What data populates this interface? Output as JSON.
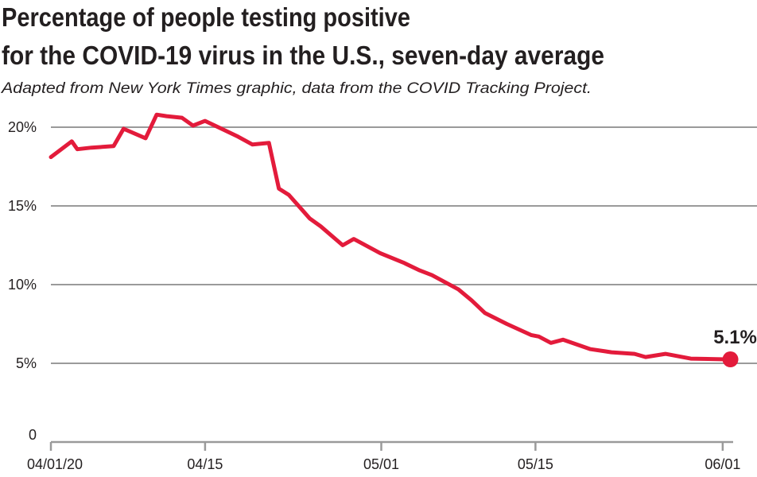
{
  "chart_data": {
    "type": "line",
    "title_lines": [
      "Percentage of people testing positive",
      "for the COVID-19 virus in the U.S., seven-day average"
    ],
    "subtitle": "Adapted from New York Times graphic, data from the COVID Tracking Project.",
    "xlabel": "",
    "ylabel": "",
    "x_unit": "days since 04/01/20",
    "xlim": [
      0,
      62
    ],
    "ylim": [
      0,
      20.8
    ],
    "grid": true,
    "x_ticks": [
      {
        "day": 0,
        "label": "04/01/20"
      },
      {
        "day": 14,
        "label": "04/15"
      },
      {
        "day": 30,
        "label": "05/01"
      },
      {
        "day": 44,
        "label": "05/15"
      },
      {
        "day": 61,
        "label": "06/01"
      }
    ],
    "y_ticks": [
      {
        "value": 0,
        "label": "0"
      },
      {
        "value": 5,
        "label": "5%"
      },
      {
        "value": 10,
        "label": "10%"
      },
      {
        "value": 15,
        "label": "15%"
      },
      {
        "value": 20,
        "label": "20%"
      }
    ],
    "series": [
      {
        "name": "Percent positive (7-day avg)",
        "color": "#e31b3b",
        "x": [
          0,
          1.9,
          2.4,
          3.7,
          5.7,
          6.6,
          8.6,
          9.6,
          10.5,
          11.9,
          12.9,
          14,
          15.5,
          17,
          18.3,
          19.8,
          20.7,
          21.6,
          23.5,
          24.5,
          26.5,
          27.5,
          29.9,
          32,
          33.5,
          34.6,
          37,
          38.2,
          39.4,
          41.4,
          43.6,
          44.3,
          45.4,
          46.5,
          49,
          50.9,
          53,
          54,
          55.8,
          58.1,
          61.7
        ],
        "values": [
          18.1,
          19.1,
          18.6,
          18.7,
          18.8,
          19.9,
          19.3,
          20.8,
          20.7,
          20.6,
          20.1,
          20.4,
          19.9,
          19.4,
          18.9,
          19.0,
          16.1,
          15.7,
          14.2,
          13.7,
          12.5,
          12.9,
          12.0,
          11.4,
          10.9,
          10.6,
          9.7,
          9.0,
          8.2,
          7.5,
          6.8,
          6.7,
          6.3,
          6.5,
          5.9,
          5.7,
          5.6,
          5.4,
          5.6,
          5.3,
          5.25
        ]
      }
    ],
    "annotations": [
      {
        "label": "5.1%",
        "day": 61.7,
        "value": 5.25
      }
    ]
  }
}
